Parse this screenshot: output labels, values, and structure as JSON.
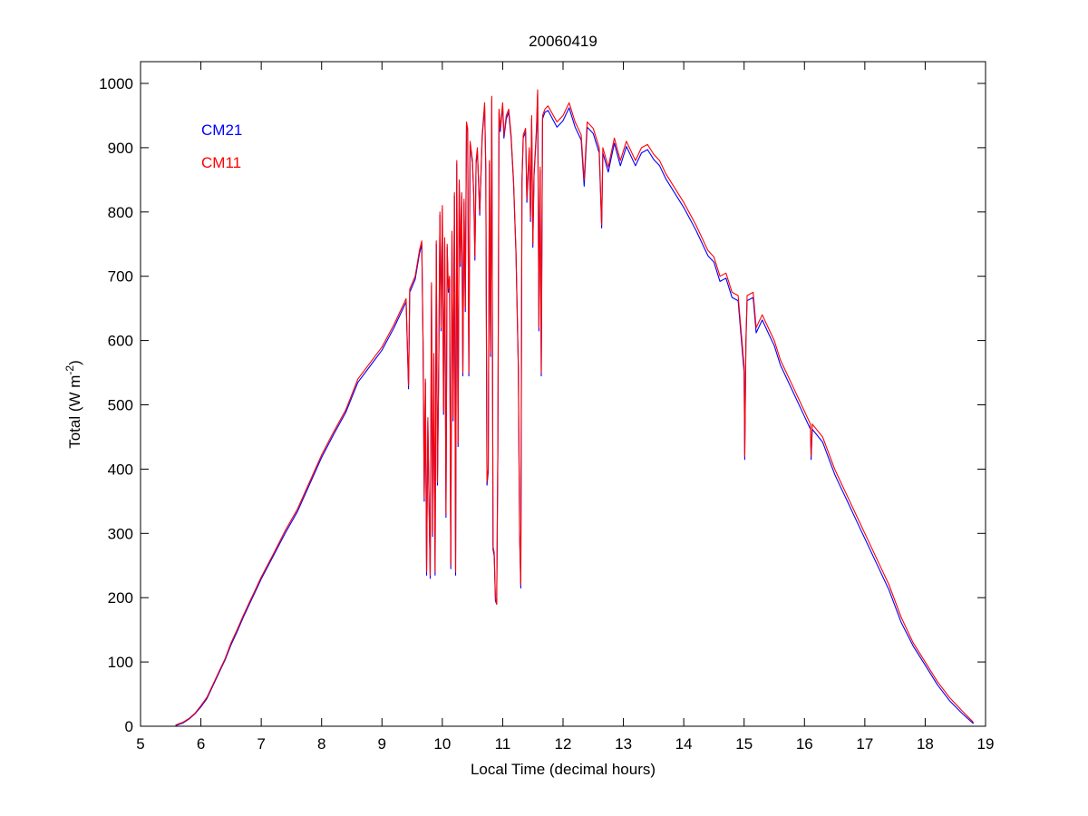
{
  "chart_data": {
    "type": "line",
    "title": "20060419",
    "xlabel": "Local Time (decimal hours)",
    "ylabel": "Total (W m",
    "ylabel_sup": "-2",
    "ylabel_end": ")",
    "xlim": [
      5,
      19
    ],
    "ylim": [
      0,
      1000
    ],
    "xticks": [
      5,
      6,
      7,
      8,
      9,
      10,
      11,
      12,
      13,
      14,
      15,
      16,
      17,
      18,
      19
    ],
    "yticks": [
      0,
      100,
      200,
      300,
      400,
      500,
      600,
      700,
      800,
      900,
      1000
    ],
    "grid": false,
    "legend_placement": "top-left",
    "x": [
      5.58,
      5.7,
      5.8,
      5.9,
      6.0,
      6.1,
      6.2,
      6.3,
      6.4,
      6.5,
      6.6,
      6.7,
      6.8,
      6.9,
      7.0,
      7.2,
      7.4,
      7.6,
      7.8,
      8.0,
      8.2,
      8.4,
      8.6,
      8.8,
      9.0,
      9.2,
      9.4,
      9.44,
      9.46,
      9.55,
      9.62,
      9.66,
      9.68,
      9.7,
      9.72,
      9.74,
      9.76,
      9.78,
      9.8,
      9.82,
      9.84,
      9.86,
      9.88,
      9.9,
      9.92,
      9.94,
      9.96,
      9.98,
      10.0,
      10.02,
      10.04,
      10.06,
      10.08,
      10.1,
      10.12,
      10.14,
      10.16,
      10.18,
      10.2,
      10.22,
      10.24,
      10.26,
      10.28,
      10.3,
      10.32,
      10.34,
      10.36,
      10.38,
      10.4,
      10.42,
      10.44,
      10.46,
      10.5,
      10.52,
      10.54,
      10.56,
      10.58,
      10.62,
      10.66,
      10.7,
      10.72,
      10.74,
      10.76,
      10.78,
      10.8,
      10.82,
      10.84,
      10.86,
      10.88,
      10.9,
      10.92,
      10.94,
      10.96,
      11.0,
      11.02,
      11.06,
      11.1,
      11.14,
      11.18,
      11.22,
      11.26,
      11.28,
      11.3,
      11.32,
      11.34,
      11.38,
      11.4,
      11.44,
      11.46,
      11.48,
      11.5,
      11.52,
      11.56,
      11.58,
      11.6,
      11.62,
      11.64,
      11.66,
      11.7,
      11.75,
      11.9,
      12.0,
      12.1,
      12.2,
      12.3,
      12.35,
      12.4,
      12.5,
      12.6,
      12.64,
      12.66,
      12.75,
      12.85,
      12.95,
      13.05,
      13.2,
      13.3,
      13.4,
      13.5,
      13.6,
      13.7,
      13.8,
      14.0,
      14.2,
      14.4,
      14.5,
      14.6,
      14.7,
      14.8,
      14.9,
      15.0,
      15.01,
      15.03,
      15.05,
      15.15,
      15.2,
      15.3,
      15.4,
      15.5,
      15.6,
      15.8,
      16.0,
      16.1,
      16.11,
      16.13,
      16.3,
      16.5,
      16.6,
      16.7,
      16.9,
      17.0,
      17.2,
      17.4,
      17.6,
      17.8,
      18.0,
      18.2,
      18.4,
      18.6,
      18.8
    ],
    "series": [
      {
        "name": "CM21",
        "color": "#0000ff",
        "y": [
          1,
          5,
          11,
          19,
          30,
          43,
          63,
          83,
          103,
          127,
          147,
          169,
          189,
          209,
          229,
          265,
          301,
          334,
          376,
          418,
          454,
          488,
          535,
          560,
          585,
          620,
          660,
          525,
          675,
          695,
          735,
          750,
          595,
          350,
          535,
          235,
          475,
          345,
          230,
          685,
          295,
          575,
          235,
          750,
          375,
          555,
          795,
          615,
          805,
          485,
          755,
          325,
          745,
          675,
          695,
          245,
          765,
          475,
          825,
          235,
          875,
          435,
          845,
          715,
          825,
          545,
          815,
          645,
          935,
          925,
          545,
          905,
          875,
          825,
          725,
          875,
          895,
          795,
          915,
          965,
          865,
          375,
          395,
          875,
          575,
          975,
          275,
          265,
          195,
          190,
          425,
          955,
          925,
          965,
          915,
          945,
          955,
          915,
          845,
          735,
          555,
          295,
          215,
          845,
          915,
          925,
          815,
          895,
          785,
          945,
          745,
          855,
          925,
          985,
          615,
          865,
          545,
          945,
          955,
          958,
          932,
          942,
          962,
          932,
          912,
          840,
          932,
          922,
          892,
          775,
          892,
          862,
          907,
          872,
          902,
          872,
          892,
          897,
          882,
          872,
          852,
          837,
          807,
          772,
          732,
          722,
          692,
          697,
          667,
          662,
          550,
          415,
          595,
          662,
          667,
          612,
          632,
          612,
          592,
          562,
          522,
          482,
          462,
          415,
          462,
          442,
          392,
          372,
          352,
          312,
          292,
          252,
          212,
          162,
          125,
          95,
          65,
          40,
          21,
          4
        ]
      },
      {
        "name": "CM11",
        "color": "#ff0000",
        "y": [
          2,
          6,
          12,
          20,
          32,
          45,
          65,
          85,
          105,
          130,
          150,
          172,
          192,
          212,
          232,
          268,
          305,
          338,
          380,
          422,
          458,
          492,
          540,
          565,
          590,
          625,
          665,
          530,
          680,
          700,
          740,
          755,
          600,
          355,
          540,
          240,
          480,
          350,
          235,
          690,
          300,
          580,
          240,
          755,
          380,
          560,
          800,
          620,
          810,
          490,
          760,
          330,
          750,
          680,
          700,
          250,
          770,
          480,
          830,
          240,
          880,
          440,
          850,
          720,
          830,
          550,
          820,
          650,
          940,
          930,
          550,
          910,
          880,
          830,
          730,
          880,
          900,
          800,
          920,
          970,
          870,
          380,
          400,
          880,
          580,
          980,
          280,
          270,
          200,
          190,
          430,
          960,
          930,
          970,
          920,
          950,
          960,
          920,
          850,
          740,
          560,
          300,
          220,
          850,
          920,
          930,
          820,
          900,
          790,
          950,
          750,
          860,
          930,
          990,
          620,
          870,
          550,
          950,
          960,
          965,
          940,
          950,
          970,
          940,
          920,
          850,
          940,
          930,
          900,
          780,
          900,
          870,
          915,
          880,
          910,
          880,
          900,
          905,
          890,
          880,
          860,
          845,
          815,
          780,
          740,
          730,
          700,
          705,
          675,
          670,
          560,
          420,
          600,
          670,
          675,
          620,
          640,
          620,
          600,
          570,
          530,
          490,
          470,
          420,
          470,
          450,
          400,
          380,
          360,
          320,
          300,
          260,
          220,
          170,
          130,
          100,
          70,
          45,
          25,
          6
        ]
      }
    ]
  }
}
